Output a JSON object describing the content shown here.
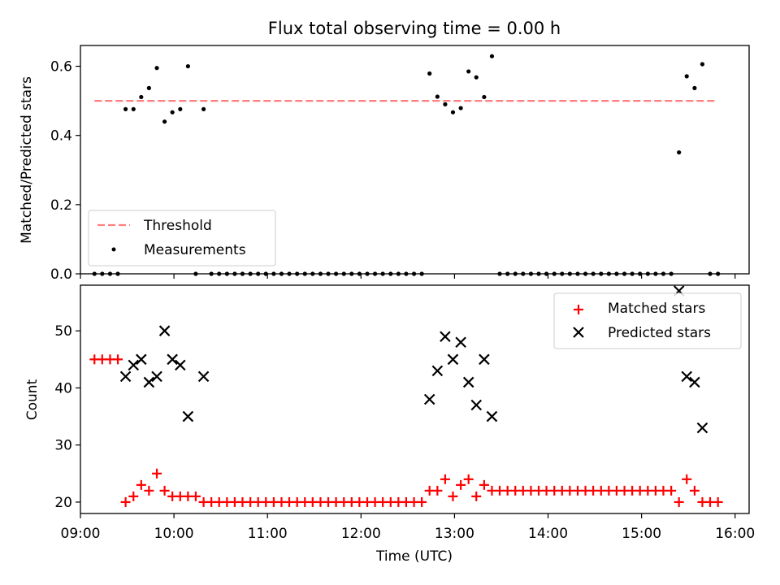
{
  "figure": {
    "title": "Flux total observing time = 0.00 h",
    "xlabel": "Time (UTC)"
  },
  "chart_data": [
    {
      "type": "scatter",
      "ylabel": "Matched/Predicted stars",
      "ylim": [
        0,
        0.66
      ],
      "yticks": [
        "0.0",
        "0.2",
        "0.4",
        "0.6"
      ],
      "xlim": [
        9.0,
        16.15
      ],
      "xtick_positions": [
        9,
        10,
        11,
        12,
        13,
        14,
        15,
        16
      ],
      "grid": false,
      "legend_location": "lower-left",
      "series": [
        {
          "name": "Threshold",
          "kind": "line",
          "style": "dashed",
          "color": "#ff7f7f",
          "x": [
            9.15,
            15.8
          ],
          "y": [
            0.5,
            0.5
          ]
        },
        {
          "name": "Measurements",
          "kind": "scatter",
          "marker": "dot",
          "color": "#000000",
          "x": [
            9.15,
            9.233,
            9.317,
            9.4,
            9.483,
            9.567,
            9.65,
            9.733,
            9.817,
            9.9,
            9.983,
            10.067,
            10.15,
            10.233,
            10.317,
            10.4,
            10.483,
            10.567,
            10.65,
            10.733,
            10.817,
            10.9,
            10.983,
            11.067,
            11.15,
            11.233,
            11.317,
            11.4,
            11.483,
            11.567,
            11.65,
            11.733,
            11.817,
            11.9,
            11.983,
            12.067,
            12.15,
            12.233,
            12.317,
            12.4,
            12.483,
            12.567,
            12.65,
            12.733,
            12.817,
            12.9,
            12.983,
            13.067,
            13.15,
            13.233,
            13.317,
            13.4,
            13.483,
            13.567,
            13.65,
            13.733,
            13.817,
            13.9,
            13.983,
            14.067,
            14.15,
            14.233,
            14.317,
            14.4,
            14.483,
            14.567,
            14.65,
            14.733,
            14.817,
            14.9,
            14.983,
            15.067,
            15.15,
            15.233,
            15.317,
            15.4,
            15.483,
            15.567,
            15.65,
            15.733,
            15.817
          ],
          "y": [
            0.0,
            0.0,
            0.0,
            0.0,
            0.476,
            0.476,
            0.511,
            0.537,
            0.595,
            0.44,
            0.467,
            0.476,
            0.6,
            0.0,
            0.476,
            0.0,
            0.0,
            0.0,
            0.0,
            0.0,
            0.0,
            0.0,
            0.0,
            0.0,
            0.0,
            0.0,
            0.0,
            0.0,
            0.0,
            0.0,
            0.0,
            0.0,
            0.0,
            0.0,
            0.0,
            0.0,
            0.0,
            0.0,
            0.0,
            0.0,
            0.0,
            0.0,
            0.0,
            0.579,
            0.512,
            0.49,
            0.467,
            0.479,
            0.585,
            0.568,
            0.511,
            0.629,
            0.0,
            0.0,
            0.0,
            0.0,
            0.0,
            0.0,
            0.0,
            0.0,
            0.0,
            0.0,
            0.0,
            0.0,
            0.0,
            0.0,
            0.0,
            0.0,
            0.0,
            0.0,
            0.0,
            0.0,
            0.0,
            0.0,
            0.0,
            0.351,
            0.571,
            0.537,
            0.606,
            0.0,
            0.0
          ]
        }
      ]
    },
    {
      "type": "scatter",
      "ylabel": "Count",
      "ylim": [
        18,
        58
      ],
      "yticks": [
        "20",
        "30",
        "40",
        "50"
      ],
      "xlim": [
        9.0,
        16.15
      ],
      "xtick_positions": [
        9,
        10,
        11,
        12,
        13,
        14,
        15,
        16
      ],
      "xticks": [
        "09:00",
        "10:00",
        "11:00",
        "12:00",
        "13:00",
        "14:00",
        "15:00",
        "16:00"
      ],
      "grid": false,
      "legend_location": "upper-right",
      "series": [
        {
          "name": "Matched stars",
          "kind": "scatter",
          "marker": "plus",
          "color": "#ff0000",
          "x": [
            9.15,
            9.233,
            9.317,
            9.4,
            9.483,
            9.567,
            9.65,
            9.733,
            9.817,
            9.9,
            9.983,
            10.067,
            10.15,
            10.233,
            10.317,
            10.4,
            10.483,
            10.567,
            10.65,
            10.733,
            10.817,
            10.9,
            10.983,
            11.067,
            11.15,
            11.233,
            11.317,
            11.4,
            11.483,
            11.567,
            11.65,
            11.733,
            11.817,
            11.9,
            11.983,
            12.067,
            12.15,
            12.233,
            12.317,
            12.4,
            12.483,
            12.567,
            12.65,
            12.733,
            12.817,
            12.9,
            12.983,
            13.067,
            13.15,
            13.233,
            13.317,
            13.4,
            13.483,
            13.567,
            13.65,
            13.733,
            13.817,
            13.9,
            13.983,
            14.067,
            14.15,
            14.233,
            14.317,
            14.4,
            14.483,
            14.567,
            14.65,
            14.733,
            14.817,
            14.9,
            14.983,
            15.067,
            15.15,
            15.233,
            15.317,
            15.4,
            15.483,
            15.567,
            15.65,
            15.733,
            15.817
          ],
          "y": [
            45,
            45,
            45,
            45,
            20,
            21,
            23,
            22,
            25,
            22,
            21,
            21,
            21,
            21,
            20,
            20,
            20,
            20,
            20,
            20,
            20,
            20,
            20,
            20,
            20,
            20,
            20,
            20,
            20,
            20,
            20,
            20,
            20,
            20,
            20,
            20,
            20,
            20,
            20,
            20,
            20,
            20,
            20,
            22,
            22,
            24,
            21,
            23,
            24,
            21,
            23,
            22,
            22,
            22,
            22,
            22,
            22,
            22,
            22,
            22,
            22,
            22,
            22,
            22,
            22,
            22,
            22,
            22,
            22,
            22,
            22,
            22,
            22,
            22,
            22,
            20,
            24,
            22,
            20,
            20,
            20
          ]
        },
        {
          "name": "Predicted stars",
          "kind": "scatter",
          "marker": "x",
          "color": "#000000",
          "x": [
            9.483,
            9.567,
            9.65,
            9.733,
            9.817,
            9.9,
            9.983,
            10.067,
            10.15,
            10.317,
            12.733,
            12.817,
            12.9,
            12.983,
            13.067,
            13.15,
            13.233,
            13.317,
            13.4,
            15.4,
            15.483,
            15.567,
            15.65
          ],
          "y": [
            42,
            44,
            45,
            41,
            42,
            50,
            45,
            44,
            35,
            42,
            38,
            43,
            49,
            45,
            48,
            41,
            37,
            45,
            35,
            57,
            42,
            41,
            33
          ]
        }
      ]
    }
  ]
}
